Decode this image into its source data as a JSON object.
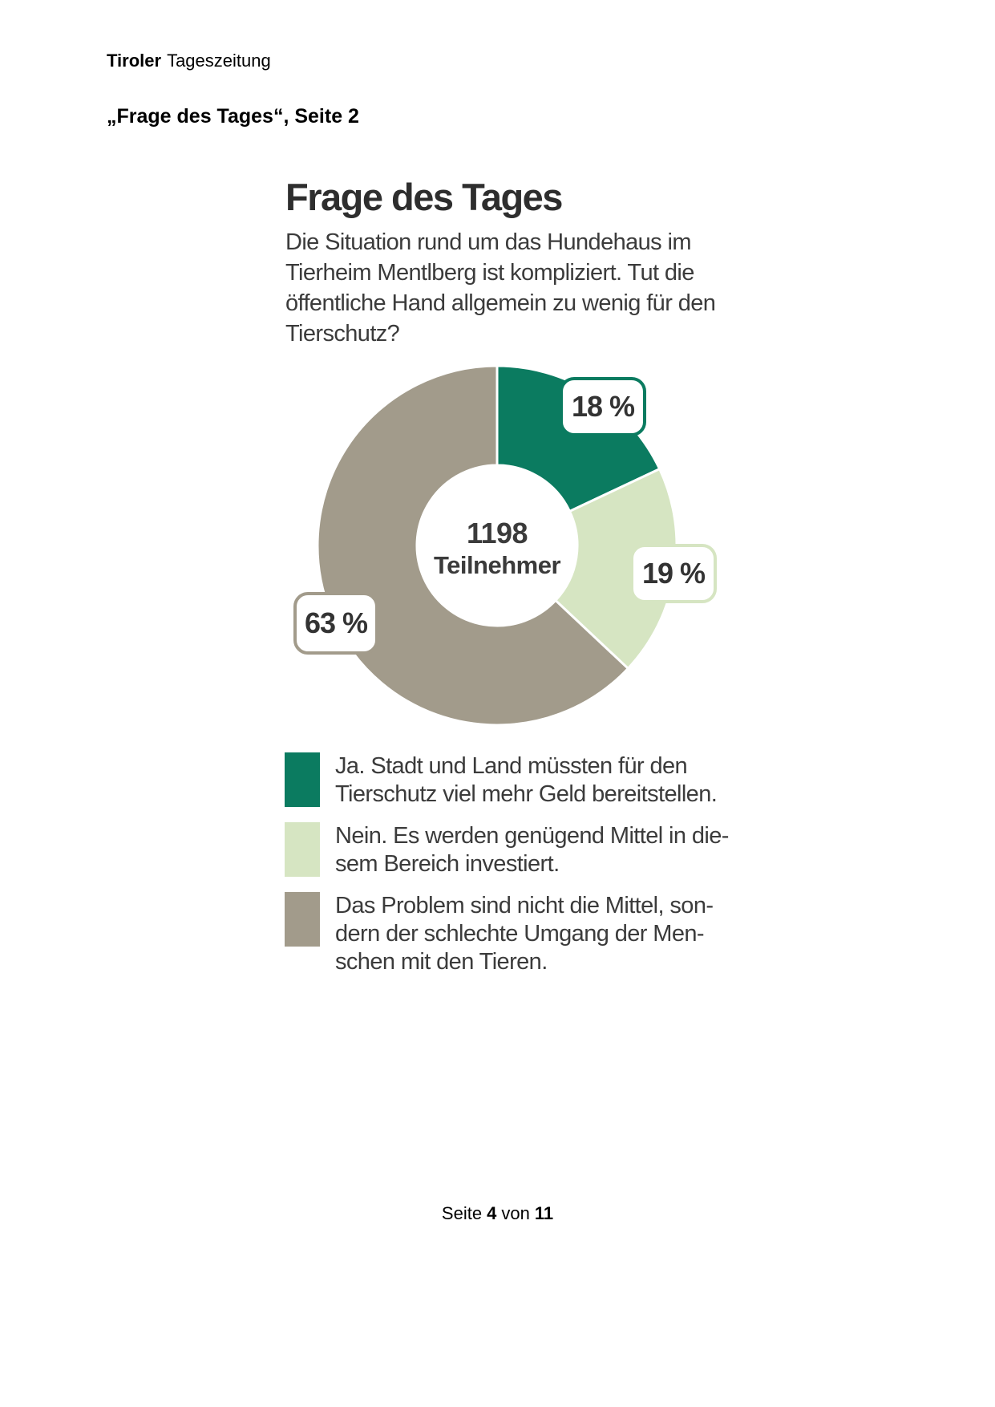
{
  "page": {
    "header": {
      "brand_bold": "Tiroler",
      "brand_rest": "Tageszeitung"
    },
    "subtitle": "„Frage des Tages“, Seite 2",
    "footer": {
      "prefix": "Seite",
      "page_number": "4",
      "connector": "von",
      "total_pages": "11"
    }
  },
  "infographic": {
    "title": "Frage des Tages",
    "question_lines": [
      "Die Situation rund um das Hundehaus im",
      "Tierheim Mentlberg ist kompliziert. Tut die",
      "öffentliche Hand allgemein zu wenig für den",
      "Tierschutz?"
    ],
    "center": {
      "value": "1198",
      "label": "Teilnehmer"
    }
  },
  "chart_data": {
    "type": "pie",
    "subtype": "donut",
    "title": "Frage des Tages",
    "start_angle_deg": 0,
    "direction": "clockwise",
    "center_value": "1198",
    "center_label": "Teilnehmer",
    "slices": [
      {
        "label": "Ja. Stadt und Land müssten für den Tierschutz viel mehr Geld bereitstellen.",
        "value": 18,
        "badge": "18 %",
        "color": "#0b7b60"
      },
      {
        "label": "Nein. Es werden genügend Mittel in diesem Bereich investiert.",
        "value": 19,
        "badge": "19 %",
        "color": "#d6e5c2"
      },
      {
        "label": "Das Problem sind nicht die Mittel, sondern der schlechte Umgang der Menschen mit den Tieren.",
        "value": 63,
        "badge": "63 %",
        "color": "#a29b8b"
      }
    ],
    "colors": {
      "separator": "#ffffff",
      "badge_text": "#333333",
      "body_text": "#3b3b3b"
    }
  },
  "legend": {
    "items": [
      {
        "color": "#0b7b60",
        "lines": [
          "Ja. Stadt und Land müssten für den",
          "Tierschutz viel mehr Geld bereitstellen."
        ]
      },
      {
        "color": "#d6e5c2",
        "lines": [
          "Nein. Es werden genügend Mittel in die-",
          "sem Bereich investiert."
        ]
      },
      {
        "color": "#a29b8b",
        "lines": [
          "Das Problem sind nicht die Mittel, son-",
          "dern der schlechte Umgang der Men-",
          "schen mit den Tieren."
        ]
      }
    ]
  }
}
